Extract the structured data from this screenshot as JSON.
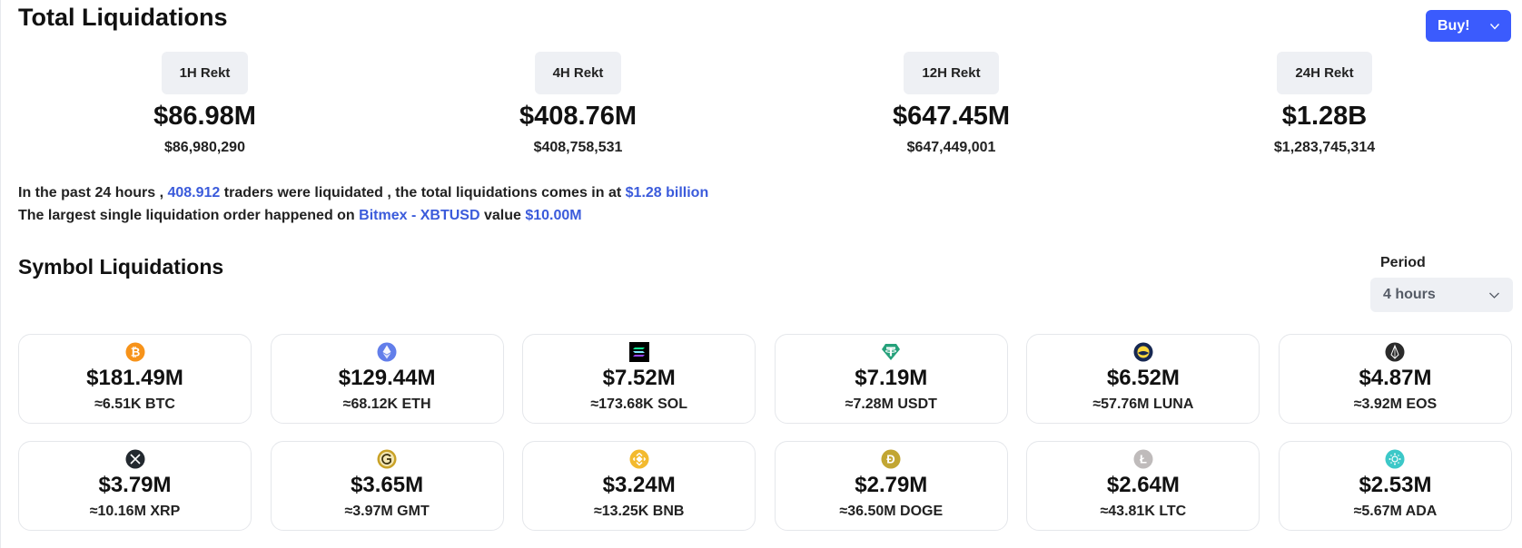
{
  "header": {
    "title": "Total Liquidations",
    "buy_label": "Buy!"
  },
  "stats": [
    {
      "label": "1H Rekt",
      "value": "$86.98M",
      "exact": "$86,980,290"
    },
    {
      "label": "4H Rekt",
      "value": "$408.76M",
      "exact": "$408,758,531"
    },
    {
      "label": "12H Rekt",
      "value": "$647.45M",
      "exact": "$647,449,001"
    },
    {
      "label": "24H Rekt",
      "value": "$1.28B",
      "exact": "$1,283,745,314"
    }
  ],
  "summary": {
    "line1_prefix": "In the past 24 hours , ",
    "traders": "408.912",
    "line1_mid": " traders were liquidated , the total liquidations comes in at ",
    "total": "$1.28 billion",
    "line2_prefix": "The largest single liquidation order happened on ",
    "exchange_pair": "Bitmex - XBTUSD",
    "line2_mid": " value ",
    "largest_value": "$10.00M"
  },
  "symbols_section": {
    "title": "Symbol Liquidations",
    "period_label": "Period",
    "period_value": "4 hours"
  },
  "coins": [
    {
      "icon": "bitcoin-icon",
      "color": "#f7931a",
      "value": "$181.49M",
      "amount": "≈6.51K BTC"
    },
    {
      "icon": "ethereum-icon",
      "color": "#627eea",
      "value": "$129.44M",
      "amount": "≈68.12K ETH"
    },
    {
      "icon": "solana-icon",
      "color": "#000000",
      "value": "$7.52M",
      "amount": "≈173.68K SOL"
    },
    {
      "icon": "tether-icon",
      "color": "#26a17b",
      "value": "$7.19M",
      "amount": "≈7.28M USDT"
    },
    {
      "icon": "luna-icon",
      "color": "#172852",
      "value": "$6.52M",
      "amount": "≈57.76M LUNA"
    },
    {
      "icon": "eos-icon",
      "color": "#2b2b2b",
      "value": "$4.87M",
      "amount": "≈3.92M EOS"
    },
    {
      "icon": "xrp-icon",
      "color": "#23292f",
      "value": "$3.79M",
      "amount": "≈10.16M XRP"
    },
    {
      "icon": "gmt-icon",
      "color": "#c9a227",
      "value": "$3.65M",
      "amount": "≈3.97M GMT"
    },
    {
      "icon": "bnb-icon",
      "color": "#f3ba2f",
      "value": "$3.24M",
      "amount": "≈13.25K BNB"
    },
    {
      "icon": "dogecoin-icon",
      "color": "#c2a633",
      "value": "$2.79M",
      "amount": "≈36.50M DOGE"
    },
    {
      "icon": "litecoin-icon",
      "color": "#bfbbbb",
      "value": "$2.64M",
      "amount": "≈43.81K LTC"
    },
    {
      "icon": "cardano-icon",
      "color": "#3cc8c8",
      "value": "$2.53M",
      "amount": "≈5.67M ADA"
    }
  ],
  "colors": {
    "accent": "#3b5bfd",
    "link": "#3b5bdb",
    "badge_bg": "#eef0f4"
  }
}
